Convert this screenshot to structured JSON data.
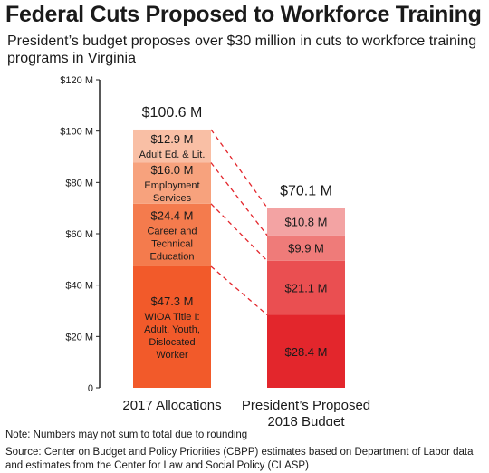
{
  "header": {
    "title": "Federal Cuts Proposed to Workforce Training",
    "subtitle": "President’s budget proposes over $30 million in cuts to workforce training programs in Virginia"
  },
  "footer": {
    "note": "Note: Numbers may not sum to total due to rounding",
    "source": "Source: Center on Budget and Policy Priorities (CBPP) estimates based on Department of Labor data and estimates from the Center for Law and Social Policy (CLASP)"
  },
  "chart_data": {
    "type": "bar",
    "stacked": true,
    "title": "Federal Cuts Proposed to Workforce Training",
    "ylim": [
      0,
      120
    ],
    "yticks": [
      0,
      20,
      40,
      60,
      80,
      100,
      120
    ],
    "ytick_labels": [
      "0",
      "$20 M",
      "$40 M",
      "$60 M",
      "$80 M",
      "$100 M",
      "$120 M"
    ],
    "grid": false,
    "categories": [
      {
        "lines": [
          "2017 Allocations"
        ]
      },
      {
        "lines": [
          "President’s Proposed",
          "2018 Budget"
        ]
      }
    ],
    "totals": [
      {
        "value": 100.6,
        "label": "$100.6 M"
      },
      {
        "value": 70.1,
        "label": "$70.1 M"
      }
    ],
    "series": [
      {
        "name": "WIOA Title I: Adult, Youth, Dislocated Worker",
        "label_lines": [
          "WIOA Title I:",
          "Adult, Youth,",
          "Dislocated",
          "Worker"
        ],
        "values": [
          47.3,
          28.4
        ],
        "value_labels": [
          "$47.3 M",
          "$28.4 M"
        ],
        "colors": [
          "#f25a2a",
          "#e3262c"
        ]
      },
      {
        "name": "Career and Technical Education",
        "label_lines": [
          "Career and",
          "Technical",
          "Education"
        ],
        "values": [
          24.4,
          21.1
        ],
        "value_labels": [
          "$24.4 M",
          "$21.1 M"
        ],
        "colors": [
          "#f47b4d",
          "#ea4f51"
        ]
      },
      {
        "name": "Employment Services",
        "label_lines": [
          "Employment",
          "Services"
        ],
        "values": [
          16.0,
          9.9
        ],
        "value_labels": [
          "$16.0 M",
          "$9.9 M"
        ],
        "colors": [
          "#f7a27d",
          "#ef7b79"
        ]
      },
      {
        "name": "Adult Ed. & Lit.",
        "label_lines": [
          "Adult Ed. & Lit."
        ],
        "values": [
          12.9,
          10.8
        ],
        "value_labels": [
          "$12.9 M",
          "$10.8 M"
        ],
        "colors": [
          "#f9bfa5",
          "#f3a3a3"
        ]
      }
    ],
    "connector_color": "#e3262c"
  }
}
